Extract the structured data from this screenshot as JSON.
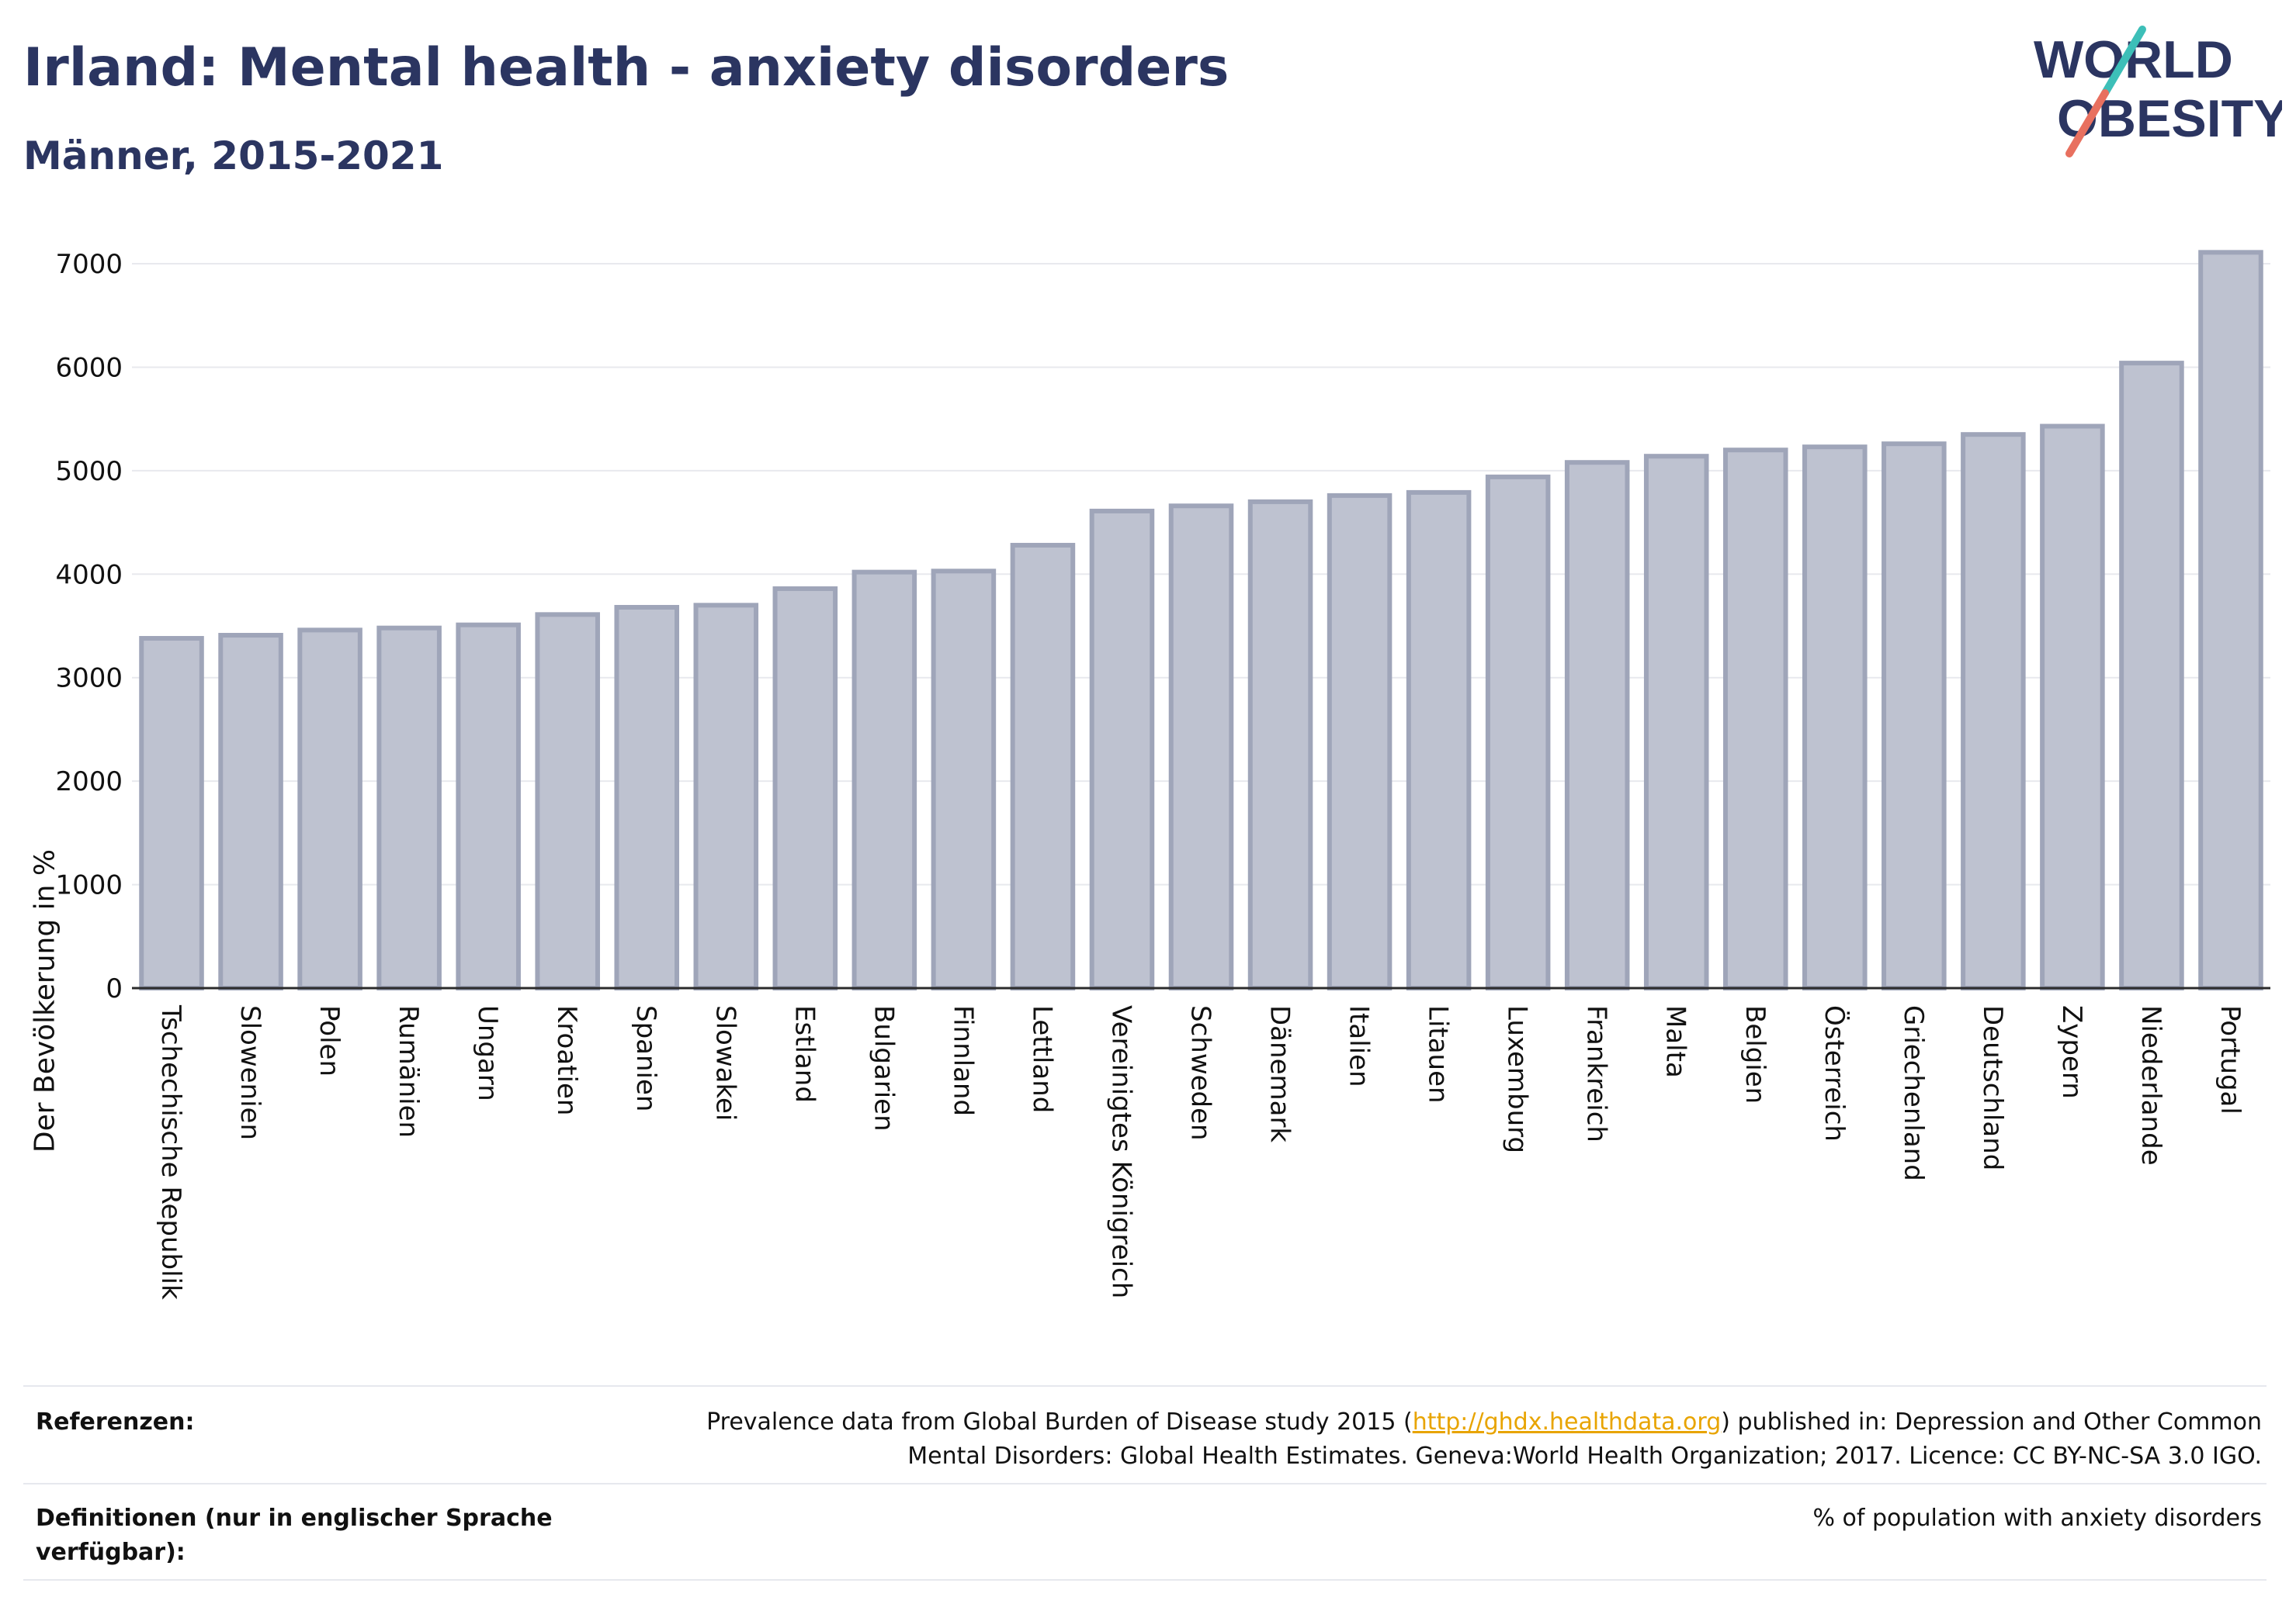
{
  "header": {
    "title": "Irland: Mental health - anxiety disorders",
    "subtitle": "Männer, 2015-2021",
    "logo_line1": "WORLD",
    "logo_line2": "OBESITY"
  },
  "chart_data": {
    "type": "bar",
    "title": "Irland: Mental health - anxiety disorders",
    "subtitle": "Männer, 2015-2021",
    "xlabel": "",
    "ylabel": "Der Bevölkerung in %",
    "ylim": [
      0,
      7300
    ],
    "yticks": [
      0,
      1000,
      2000,
      3000,
      4000,
      5000,
      6000,
      7000
    ],
    "grid": true,
    "categories": [
      "Tschechische Republik",
      "Slowenien",
      "Polen",
      "Rumänien",
      "Ungarn",
      "Kroatien",
      "Spanien",
      "Slowakei",
      "Estland",
      "Bulgarien",
      "Finnland",
      "Lettland",
      "Vereinigtes Königreich",
      "Schweden",
      "Dänemark",
      "Italien",
      "Litauen",
      "Luxemburg",
      "Frankreich",
      "Malta",
      "Belgien",
      "Österreich",
      "Griechenland",
      "Deutschland",
      "Zypern",
      "Niederlande",
      "Portugal"
    ],
    "values": [
      3380,
      3410,
      3460,
      3480,
      3510,
      3610,
      3680,
      3700,
      3860,
      4020,
      4030,
      4280,
      4610,
      4660,
      4700,
      4760,
      4790,
      4940,
      5080,
      5140,
      5200,
      5230,
      5260,
      5350,
      5430,
      6040,
      7110
    ]
  },
  "footer": {
    "references_label": "Referenzen:",
    "references_text_before": "Prevalence data from Global Burden of Disease study 2015 (",
    "references_link": "http://ghdx.healthdata.org",
    "references_text_after": ") published in: Depression and Other Common",
    "references_text_line2": "Mental Disorders: Global Health Estimates. Geneva:World Health Organization; 2017. Licence: CC BY-NC-SA 3.0 IGO.",
    "definitions_label": "Definitionen (nur in englischer Sprache verfügbar):",
    "definitions_text": "% of population with anxiety disorders"
  },
  "colors": {
    "bar_fill": "#bec2d0",
    "bar_stroke": "#9fa5b9",
    "title": "#2b3561",
    "logo_teal": "#3dbfb8",
    "logo_coral": "#e8705f",
    "link": "#e8a400"
  }
}
